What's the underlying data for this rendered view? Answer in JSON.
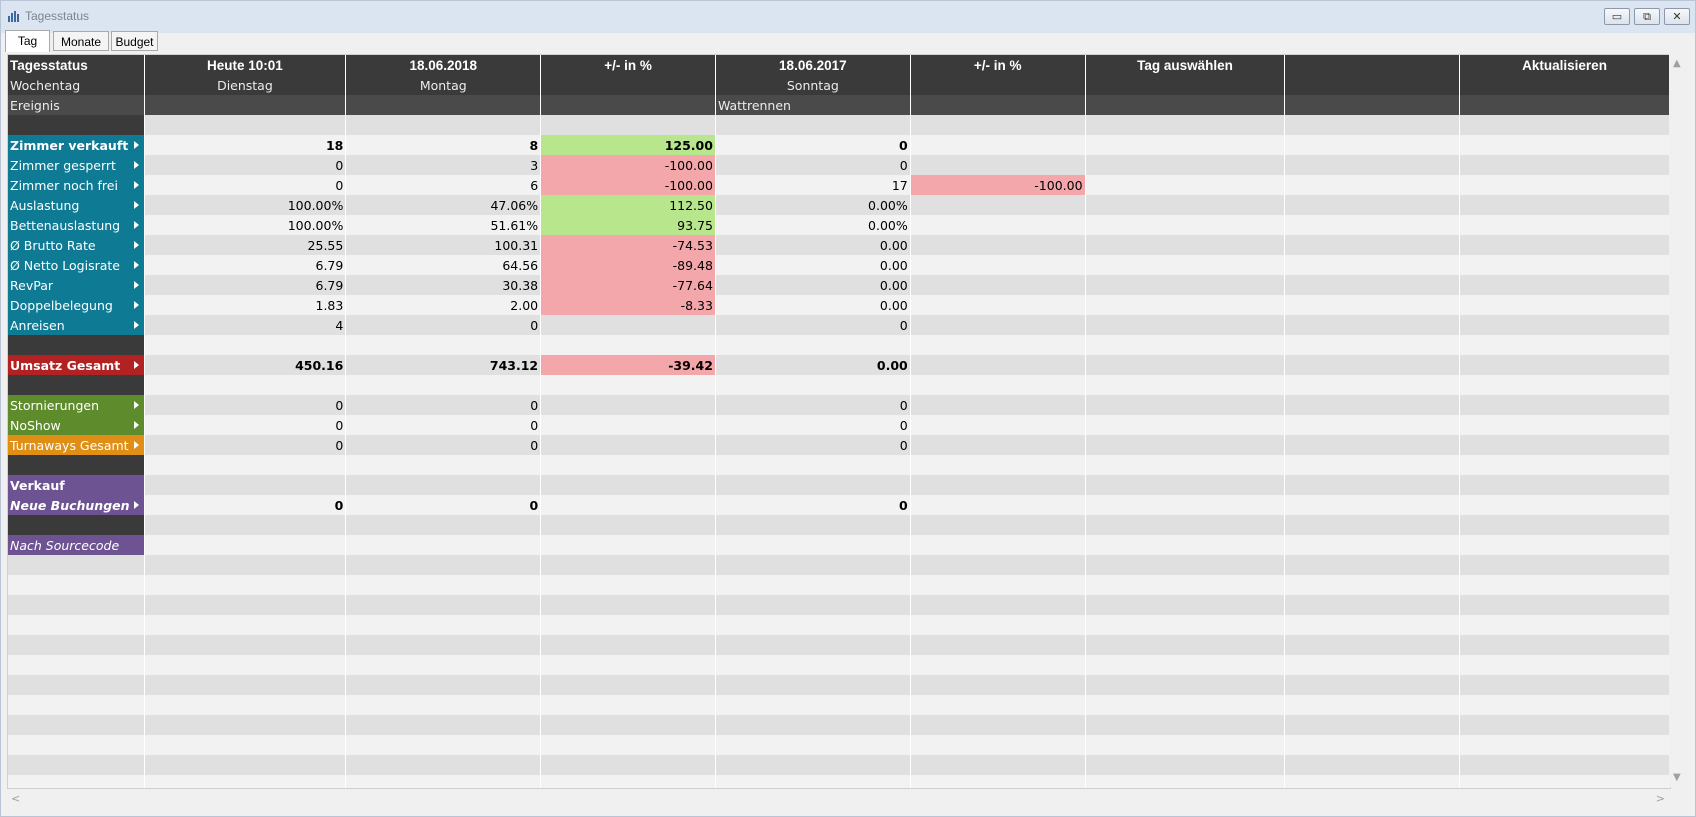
{
  "window": {
    "title": "Tagesstatus",
    "icon": "bar-chart-icon"
  },
  "tabs": [
    {
      "label": "Tag"
    },
    {
      "label": "Monate"
    },
    {
      "label": "Budget"
    }
  ],
  "header": [
    "Tagesstatus",
    "Heute 10:01",
    "18.06.2018",
    "+/- in %",
    "18.06.2017",
    "+/- in %",
    "Tag auswählen",
    "",
    "Aktualisieren"
  ],
  "weekday": [
    "Wochentag",
    "Dienstag",
    "Montag",
    "",
    "Sonntag",
    "",
    "",
    "",
    ""
  ],
  "event": [
    "Ereignis",
    "",
    "",
    "",
    "Wattrennen",
    "",
    "",
    "",
    ""
  ],
  "rows": [
    {
      "label": "Zimmer verkauft",
      "color": "teal",
      "bold": true,
      "c1": "18",
      "c2": "8",
      "c3": "125.00",
      "c3s": "pos",
      "c4": "0",
      "c5": "",
      "c5s": ""
    },
    {
      "label": "Zimmer gesperrt",
      "color": "teal",
      "c1": "0",
      "c2": "3",
      "c3": "-100.00",
      "c3s": "neg",
      "c4": "0",
      "c5": "",
      "c5s": ""
    },
    {
      "label": "Zimmer noch frei",
      "color": "teal",
      "c1": "0",
      "c2": "6",
      "c3": "-100.00",
      "c3s": "neg",
      "c4": "17",
      "c5": "-100.00",
      "c5s": "neg"
    },
    {
      "label": "Auslastung",
      "color": "teal",
      "c1": "100.00%",
      "c2": "47.06%",
      "c3": "112.50",
      "c3s": "pos",
      "c4": "0.00%",
      "c5": "",
      "c5s": ""
    },
    {
      "label": "Bettenauslastung",
      "color": "teal",
      "c1": "100.00%",
      "c2": "51.61%",
      "c3": "93.75",
      "c3s": "pos",
      "c4": "0.00%",
      "c5": "",
      "c5s": ""
    },
    {
      "label": "Ø Brutto Rate",
      "color": "teal",
      "c1": "25.55",
      "c2": "100.31",
      "c3": "-74.53",
      "c3s": "neg",
      "c4": "0.00",
      "c5": "",
      "c5s": ""
    },
    {
      "label": "Ø Netto Logisrate",
      "color": "teal",
      "c1": "6.79",
      "c2": "64.56",
      "c3": "-89.48",
      "c3s": "neg",
      "c4": "0.00",
      "c5": "",
      "c5s": ""
    },
    {
      "label": "RevPar",
      "color": "teal",
      "c1": "6.79",
      "c2": "30.38",
      "c3": "-77.64",
      "c3s": "neg",
      "c4": "0.00",
      "c5": "",
      "c5s": ""
    },
    {
      "label": "Doppelbelegung",
      "color": "teal",
      "c1": "1.83",
      "c2": "2.00",
      "c3": "-8.33",
      "c3s": "neg",
      "c4": "0.00",
      "c5": "",
      "c5s": ""
    },
    {
      "label": "Anreisen",
      "color": "teal",
      "c1": "4",
      "c2": "0",
      "c3": "",
      "c3s": "",
      "c4": "0",
      "c5": "",
      "c5s": ""
    },
    {
      "spacer": true
    },
    {
      "label": "Umsatz Gesamt",
      "color": "red",
      "bold": true,
      "c1": "450.16",
      "c2": "743.12",
      "c3": "-39.42",
      "c3s": "neg",
      "c4": "0.00",
      "c5": "",
      "c5s": ""
    },
    {
      "spacer": true
    },
    {
      "label": "Stornierungen",
      "color": "green",
      "c1": "0",
      "c2": "0",
      "c3": "",
      "c3s": "",
      "c4": "0",
      "c5": "",
      "c5s": ""
    },
    {
      "label": "NoShow",
      "color": "green",
      "c1": "0",
      "c2": "0",
      "c3": "",
      "c3s": "",
      "c4": "0",
      "c5": "",
      "c5s": ""
    },
    {
      "label": "Turnaways Gesamt",
      "color": "orange",
      "c1": "0",
      "c2": "0",
      "c3": "",
      "c3s": "",
      "c4": "0",
      "c5": "",
      "c5s": ""
    },
    {
      "spacer": true
    },
    {
      "label": "Verkauf",
      "color": "purple",
      "bold": true,
      "noarrow": true,
      "c1": "",
      "c2": "",
      "c3": "",
      "c3s": "",
      "c4": "",
      "c5": "",
      "c5s": ""
    },
    {
      "label": "Neue Buchungen",
      "color": "purple-i",
      "bold": true,
      "c1": "0",
      "c2": "0",
      "c3": "",
      "c3s": "",
      "c4": "0",
      "c5": "",
      "c5s": ""
    },
    {
      "spacer": true
    },
    {
      "label": "Nach Sourcecode",
      "color": "purple-i",
      "noarrow": true,
      "c1": "",
      "c2": "",
      "c3": "",
      "c3s": "",
      "c4": "",
      "c5": "",
      "c5s": ""
    }
  ],
  "colors": {
    "teal": "#0e7a94",
    "red": "#b32222",
    "green": "#5e8c2c",
    "orange": "#e08f16",
    "purple": "#6e5393",
    "positive": "#b8e68c",
    "negative": "#f4a7aa"
  }
}
